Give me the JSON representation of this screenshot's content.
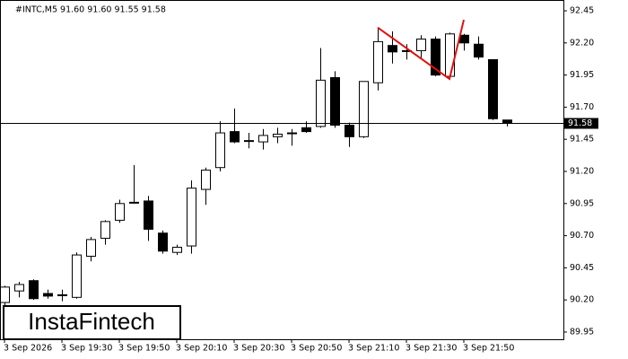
{
  "chart_data": {
    "type": "candlestick",
    "title": "#INTC,M5  91.60 91.60 91.55 91.58",
    "watermark": "InstaFintech",
    "categories": [
      "3 Sep 2026",
      null,
      null,
      null,
      "3 Sep 19:30",
      null,
      null,
      null,
      "3 Sep 19:50",
      null,
      null,
      null,
      "3 Sep 20:10",
      null,
      null,
      null,
      "3 Sep 20:30",
      null,
      null,
      null,
      "3 Sep 20:50",
      null,
      null,
      null,
      "3 Sep 21:10",
      null,
      null,
      null,
      "3 Sep 21:30",
      null,
      null,
      null,
      "3 Sep 21:50",
      null,
      null,
      null
    ],
    "open": [
      90.18,
      90.27,
      90.35,
      90.25,
      90.24,
      90.22,
      90.54,
      90.68,
      90.82,
      90.96,
      90.97,
      90.72,
      90.57,
      90.62,
      91.06,
      91.23,
      91.51,
      91.44,
      91.43,
      91.47,
      91.5,
      91.54,
      91.55,
      91.93,
      91.56,
      91.47,
      91.89,
      92.18,
      92.14,
      92.14,
      92.23,
      91.94,
      92.26,
      92.19,
      92.07,
      91.6
    ],
    "high": [
      90.31,
      90.34,
      90.36,
      90.28,
      90.28,
      90.57,
      90.69,
      90.82,
      90.98,
      91.25,
      91.01,
      90.74,
      90.63,
      91.13,
      91.23,
      91.59,
      91.69,
      91.5,
      91.53,
      91.54,
      91.53,
      91.59,
      92.16,
      91.98,
      91.58,
      91.9,
      92.31,
      92.29,
      92.19,
      92.26,
      92.25,
      92.28,
      92.27,
      92.25,
      92.07,
      91.6
    ],
    "low": [
      90.15,
      90.22,
      90.2,
      90.21,
      90.19,
      90.21,
      90.5,
      90.63,
      90.8,
      90.95,
      90.66,
      90.56,
      90.55,
      90.56,
      90.94,
      91.2,
      91.42,
      91.38,
      91.37,
      91.42,
      91.4,
      91.5,
      91.54,
      91.54,
      91.39,
      91.46,
      91.83,
      92.04,
      92.07,
      92.08,
      91.94,
      91.92,
      92.14,
      92.07,
      91.6,
      91.55
    ],
    "close": [
      90.3,
      90.32,
      90.21,
      90.23,
      90.24,
      90.55,
      90.67,
      90.81,
      90.95,
      90.96,
      90.75,
      90.58,
      90.61,
      91.07,
      91.21,
      91.5,
      91.43,
      91.44,
      91.48,
      91.49,
      91.5,
      91.51,
      91.91,
      91.56,
      91.47,
      91.9,
      92.21,
      92.13,
      92.14,
      92.23,
      91.95,
      92.27,
      92.2,
      92.09,
      91.61,
      91.58
    ],
    "up_color": "#ffffff",
    "down_color": "#000000",
    "current_price": 91.58,
    "pattern": {
      "color": "#e01010",
      "x": [
        26,
        31,
        32
      ],
      "values": [
        92.32,
        91.92,
        92.38
      ]
    },
    "ylim": [
      89.894,
      92.534
    ],
    "yticks": [
      92.45,
      {
        "value": 92.2,
        "label": "92.20"
      },
      91.95,
      {
        "value": 91.7,
        "label": "91.70"
      },
      91.45,
      {
        "value": 91.2,
        "label": "91.20"
      },
      90.95,
      {
        "value": 90.7,
        "label": "90.70"
      },
      90.45,
      {
        "value": 90.2,
        "label": "90.20"
      },
      89.95
    ]
  }
}
